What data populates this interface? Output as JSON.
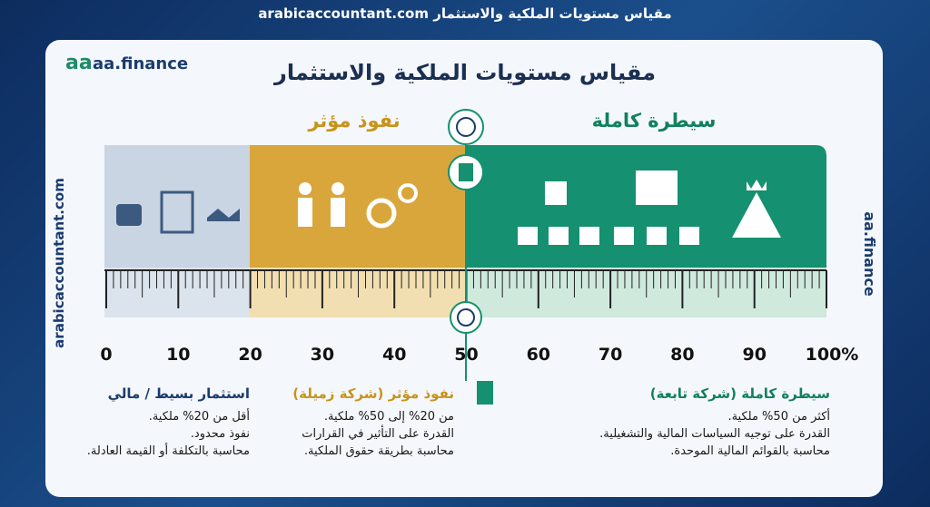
{
  "header": {
    "title": "مقياس مستويات الملكية والاستثمار",
    "site": "arabicaccountant.com"
  },
  "logo": "aa.finance",
  "card_title": "مقياس مستويات الملكية والاستثمار",
  "side_left": "arabicaccountant.com",
  "side_right": "aa.finance",
  "zones": {
    "influence": "نفوذ مؤثر",
    "control": "سيطرة كاملة"
  },
  "scale": [
    "0",
    "10",
    "20",
    "30",
    "40",
    "50",
    "60",
    "70",
    "80",
    "90",
    "100%"
  ],
  "levels": [
    {
      "heading": "استثمار بسيط / مالي",
      "lines": [
        "أقل من 20% ملكية.",
        "نفوذ محدود.",
        "محاسبة بالتكلفة أو القيمة العادلة."
      ]
    },
    {
      "heading": "نفوذ مؤثر (شركة زميلة)",
      "lines": [
        "من 20% إلى 50% ملكية.",
        "القدرة على التأثير في القرارات",
        "محاسبة بطريقة حقوق الملكية."
      ]
    },
    {
      "heading": "سيطرة كاملة (شركة تابعة)",
      "lines": [
        "أكثر من 50% ملكية.",
        "القدرة على توجيه السياسات المالية والتشغيلية.",
        "محاسبة بالقوائم المالية الموحدة."
      ]
    }
  ]
}
